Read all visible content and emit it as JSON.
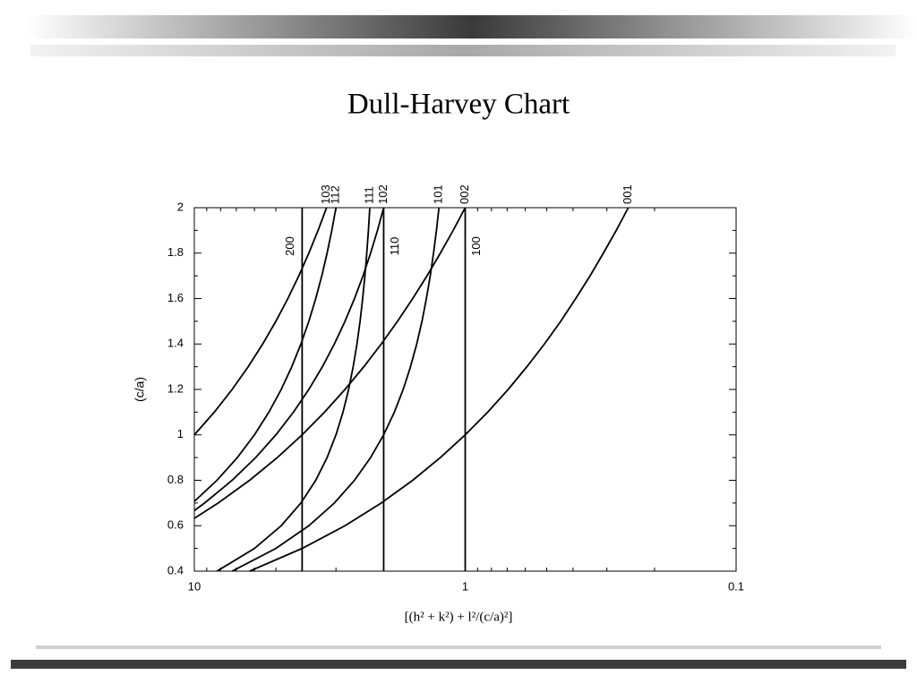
{
  "chart_data": {
    "type": "line",
    "title": "Dull-Harvey Chart",
    "x_label": "[(h² + k²) + l²/(c/a)²]",
    "y_label": "(c/a)",
    "log_x": true,
    "xlim": [
      10,
      0.1
    ],
    "xticks": [
      10,
      1,
      0.1
    ],
    "xminorticks": [
      9,
      8,
      7,
      6,
      5,
      4,
      3,
      2,
      0.9,
      0.8,
      0.7,
      0.6,
      0.5,
      0.4,
      0.3,
      0.2
    ],
    "ylim": [
      0.4,
      2
    ],
    "yticks": [
      0.4,
      0.6,
      0.8,
      1,
      1.2,
      1.4,
      1.6,
      1.8,
      2
    ],
    "yminorticks": [
      0.5,
      0.7,
      0.9,
      1.1,
      1.3,
      1.5,
      1.7,
      1.9
    ],
    "series": [
      {
        "name": "001",
        "color": "#000000",
        "x": [
          6.25,
          4,
          2.778,
          2.041,
          1.5625,
          1.235,
          1,
          0.826,
          0.694,
          0.592,
          0.51,
          0.444,
          0.391,
          0.346,
          0.309,
          0.277,
          0.25
        ],
        "values": [
          0.4,
          0.5,
          0.6,
          0.7,
          0.8,
          0.9,
          1.0,
          1.1,
          1.2,
          1.3,
          1.4,
          1.5,
          1.6,
          1.7,
          1.8,
          1.9,
          2.0
        ]
      },
      {
        "name": "002",
        "color": "#000000",
        "x": [
          9.983,
          8.163,
          6.25,
          4.938,
          4,
          3.306,
          2.778,
          2.367,
          2.041,
          1.778,
          1.5625,
          1.384,
          1.235,
          1.108,
          1
        ],
        "values": [
          0.633,
          0.7,
          0.8,
          0.9,
          1.0,
          1.1,
          1.2,
          1.3,
          1.4,
          1.5,
          1.6,
          1.7,
          1.8,
          1.9,
          2.0
        ]
      },
      {
        "name": "101",
        "color": "#000000",
        "x": [
          7.25,
          5,
          3.778,
          3.041,
          2.5625,
          2.235,
          2,
          1.826,
          1.694,
          1.592,
          1.51,
          1.444,
          1.391,
          1.346,
          1.309,
          1.277,
          1.25
        ],
        "values": [
          0.4,
          0.5,
          0.6,
          0.7,
          0.8,
          0.9,
          1.0,
          1.1,
          1.2,
          1.3,
          1.4,
          1.5,
          1.6,
          1.7,
          1.8,
          1.9,
          2.0
        ]
      },
      {
        "name": "102",
        "color": "#000000",
        "x": [
          9.991,
          9.163,
          7.25,
          5.938,
          5,
          4.306,
          3.778,
          3.367,
          3.041,
          2.778,
          2.5625,
          2.384,
          2.235,
          2.108,
          2
        ],
        "values": [
          0.667,
          0.7,
          0.8,
          0.9,
          1.0,
          1.1,
          1.2,
          1.3,
          1.4,
          1.5,
          1.6,
          1.7,
          1.8,
          1.9,
          2.0
        ]
      },
      {
        "name": "111",
        "color": "#000000",
        "x": [
          8.25,
          6,
          4.778,
          4.041,
          3.5625,
          3.235,
          3,
          2.826,
          2.694,
          2.592,
          2.51,
          2.444,
          2.391,
          2.346,
          2.309,
          2.277,
          2.25
        ],
        "values": [
          0.4,
          0.5,
          0.6,
          0.7,
          0.8,
          0.9,
          1.0,
          1.1,
          1.2,
          1.3,
          1.4,
          1.5,
          1.6,
          1.7,
          1.8,
          1.9,
          2.0
        ]
      },
      {
        "name": "112",
        "color": "#000000",
        "x": [
          9.98,
          8.25,
          6.938,
          6,
          5.306,
          4.778,
          4.367,
          4.041,
          3.778,
          3.5625,
          3.384,
          3.235,
          3.108,
          3
        ],
        "values": [
          0.708,
          0.8,
          0.9,
          1.0,
          1.1,
          1.2,
          1.3,
          1.4,
          1.5,
          1.6,
          1.7,
          1.8,
          1.9,
          2.0
        ]
      },
      {
        "name": "103",
        "color": "#000000",
        "x": [
          10,
          8.438,
          7.25,
          6.325,
          5.592,
          5,
          4.516,
          4.114,
          3.778,
          3.493,
          3.25
        ],
        "values": [
          1.0,
          1.1,
          1.2,
          1.3,
          1.4,
          1.5,
          1.6,
          1.7,
          1.8,
          1.9,
          2.0
        ]
      },
      {
        "name": "100",
        "color": "#000000",
        "x": [
          1,
          1
        ],
        "values": [
          0.4,
          2
        ]
      },
      {
        "name": "110",
        "color": "#000000",
        "x": [
          2,
          2
        ],
        "values": [
          0.4,
          2
        ]
      },
      {
        "name": "200",
        "color": "#000000",
        "x": [
          4,
          4
        ],
        "values": [
          0.4,
          2
        ]
      }
    ]
  }
}
